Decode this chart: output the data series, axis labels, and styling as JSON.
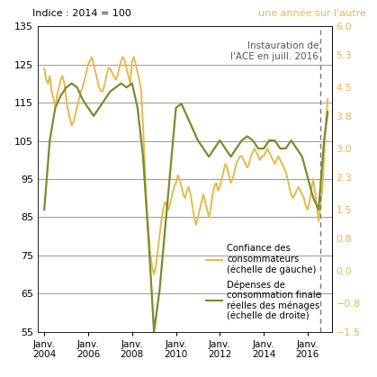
{
  "title_left": "Indice : 2014 = 100",
  "title_right": "une année sur l'autre",
  "annotation": "Instauration de\nl'ACE en juill. 2016",
  "vline_x": 2016.583,
  "ylim_left": [
    55,
    135
  ],
  "ylim_right": [
    -1.5,
    6.0
  ],
  "yticks_left": [
    55,
    65,
    75,
    85,
    95,
    105,
    115,
    125,
    135
  ],
  "yticks_right": [
    -1.5,
    -0.8,
    0.0,
    0.8,
    1.5,
    2.3,
    3.0,
    3.8,
    4.5,
    5.3,
    6.0
  ],
  "xtick_labels": [
    "Janv.\n2004",
    "Janv.\n2006",
    "Janv.\n2008",
    "Janv.\n2010",
    "Janv.\n2012",
    "Janv.\n2014",
    "Janv.\n2016"
  ],
  "xtick_positions": [
    2004,
    2006,
    2008,
    2010,
    2012,
    2014,
    2016
  ],
  "xlim": [
    2003.7,
    2017.1
  ],
  "color_confidence": "#E8B84B",
  "color_depenses": "#7A8C2A",
  "color_right_axis": "#E8B84B",
  "color_annotation": "#555555",
  "legend_confidence": "Confiance des\nconsommateurs\n(échelle de gauche)",
  "legend_depenses": "Dépenses de\nconsommation finale\nréelles des ménages\n(échelle de droite)",
  "background_color": "#ffffff",
  "grid_color": "#888888",
  "confidence_x": [
    2004.0,
    2004.083,
    2004.167,
    2004.25,
    2004.333,
    2004.417,
    2004.5,
    2004.583,
    2004.667,
    2004.75,
    2004.833,
    2004.917,
    2005.0,
    2005.083,
    2005.167,
    2005.25,
    2005.333,
    2005.417,
    2005.5,
    2005.583,
    2005.667,
    2005.75,
    2005.833,
    2005.917,
    2006.0,
    2006.083,
    2006.167,
    2006.25,
    2006.333,
    2006.417,
    2006.5,
    2006.583,
    2006.667,
    2006.75,
    2006.833,
    2006.917,
    2007.0,
    2007.083,
    2007.167,
    2007.25,
    2007.333,
    2007.417,
    2007.5,
    2007.583,
    2007.667,
    2007.75,
    2007.833,
    2007.917,
    2008.0,
    2008.083,
    2008.167,
    2008.25,
    2008.333,
    2008.417,
    2008.5,
    2008.583,
    2008.667,
    2008.75,
    2008.833,
    2008.917,
    2009.0,
    2009.083,
    2009.167,
    2009.25,
    2009.333,
    2009.417,
    2009.5,
    2009.583,
    2009.667,
    2009.75,
    2009.833,
    2009.917,
    2010.0,
    2010.083,
    2010.167,
    2010.25,
    2010.333,
    2010.417,
    2010.5,
    2010.583,
    2010.667,
    2010.75,
    2010.833,
    2010.917,
    2011.0,
    2011.083,
    2011.167,
    2011.25,
    2011.333,
    2011.417,
    2011.5,
    2011.583,
    2011.667,
    2011.75,
    2011.833,
    2011.917,
    2012.0,
    2012.083,
    2012.167,
    2012.25,
    2012.333,
    2012.417,
    2012.5,
    2012.583,
    2012.667,
    2012.75,
    2012.833,
    2012.917,
    2013.0,
    2013.083,
    2013.167,
    2013.25,
    2013.333,
    2013.417,
    2013.5,
    2013.583,
    2013.667,
    2013.75,
    2013.833,
    2013.917,
    2014.0,
    2014.083,
    2014.167,
    2014.25,
    2014.333,
    2014.417,
    2014.5,
    2014.583,
    2014.667,
    2014.75,
    2014.833,
    2014.917,
    2015.0,
    2015.083,
    2015.167,
    2015.25,
    2015.333,
    2015.417,
    2015.5,
    2015.583,
    2015.667,
    2015.75,
    2015.833,
    2015.917,
    2016.0,
    2016.083,
    2016.167,
    2016.25,
    2016.333,
    2016.417,
    2016.5,
    2016.583,
    2016.667,
    2016.75,
    2016.833,
    2016.917
  ],
  "confidence_y": [
    124,
    121,
    120,
    122,
    118,
    116,
    114,
    117,
    119,
    121,
    122,
    120,
    116,
    113,
    111,
    109,
    110,
    112,
    114,
    116,
    118,
    119,
    121,
    123,
    125,
    126,
    127,
    125,
    123,
    121,
    119,
    118,
    118,
    120,
    122,
    124,
    124,
    123,
    122,
    121,
    122,
    124,
    126,
    127,
    126,
    124,
    122,
    120,
    126,
    127,
    125,
    123,
    121,
    118,
    109,
    98,
    87,
    81,
    75,
    72,
    70,
    72,
    76,
    80,
    84,
    87,
    89,
    88,
    87,
    89,
    91,
    93,
    94,
    96,
    95,
    93,
    91,
    90,
    92,
    93,
    91,
    88,
    85,
    83,
    85,
    87,
    89,
    91,
    89,
    87,
    85,
    87,
    91,
    93,
    94,
    92,
    93,
    95,
    97,
    99,
    98,
    96,
    94,
    95,
    97,
    99,
    100,
    101,
    101,
    100,
    99,
    98,
    99,
    101,
    102,
    103,
    102,
    101,
    100,
    101,
    101,
    102,
    103,
    102,
    101,
    100,
    99,
    100,
    101,
    100,
    99,
    98,
    97,
    95,
    93,
    91,
    90,
    91,
    92,
    93,
    92,
    91,
    90,
    88,
    87,
    89,
    92,
    95,
    92,
    88,
    84,
    88,
    92,
    101,
    110,
    116
  ],
  "depenses_x": [
    2004.0,
    2004.25,
    2004.5,
    2004.75,
    2005.0,
    2005.25,
    2005.5,
    2005.75,
    2006.0,
    2006.25,
    2006.5,
    2006.75,
    2007.0,
    2007.25,
    2007.5,
    2007.75,
    2008.0,
    2008.25,
    2008.5,
    2008.75,
    2009.0,
    2009.25,
    2009.5,
    2009.75,
    2010.0,
    2010.25,
    2010.5,
    2010.75,
    2011.0,
    2011.25,
    2011.5,
    2011.75,
    2012.0,
    2012.25,
    2012.5,
    2012.75,
    2013.0,
    2013.25,
    2013.5,
    2013.75,
    2014.0,
    2014.25,
    2014.5,
    2014.75,
    2015.0,
    2015.25,
    2015.5,
    2015.75,
    2016.0,
    2016.25,
    2016.5,
    2016.75,
    2016.917
  ],
  "depenses_y": [
    1.5,
    3.2,
    4.0,
    4.3,
    4.5,
    4.6,
    4.5,
    4.2,
    4.0,
    3.8,
    4.0,
    4.2,
    4.4,
    4.5,
    4.6,
    4.5,
    4.6,
    4.0,
    2.8,
    0.8,
    -1.5,
    -0.5,
    1.0,
    2.5,
    4.0,
    4.1,
    3.8,
    3.5,
    3.2,
    3.0,
    2.8,
    3.0,
    3.2,
    3.0,
    2.8,
    3.0,
    3.2,
    3.3,
    3.2,
    3.0,
    3.0,
    3.2,
    3.2,
    3.0,
    3.0,
    3.2,
    3.0,
    2.8,
    2.3,
    1.8,
    1.5,
    3.2,
    3.9
  ]
}
